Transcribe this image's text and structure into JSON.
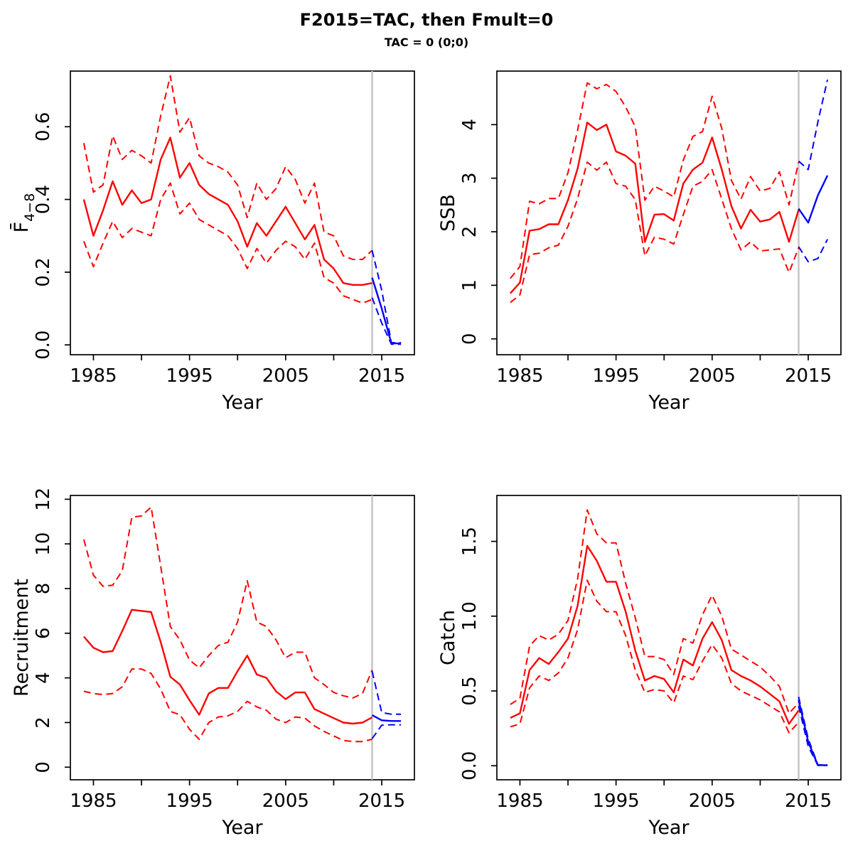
{
  "title": "F2015=TAC, then Fmult=0",
  "subtitle": "TAC = 0 (0;0)",
  "colors": {
    "historic": "#FF0000",
    "forecast": "#0000FF",
    "divider": "#C4C4C4",
    "axis": "#000000"
  },
  "chart_data": [
    {
      "id": "f48",
      "type": "line",
      "xlabel": "Year",
      "ylabel": "F̄",
      "ylabel_subscript": "4−8",
      "xlim": [
        1982.6,
        2018.4
      ],
      "ylim": [
        -0.027,
        0.753
      ],
      "xticks": [
        1985,
        1990,
        1995,
        2000,
        2005,
        2010,
        2015
      ],
      "xtick_labeled": [
        1985,
        1995,
        2005,
        2015
      ],
      "yticks": [
        0,
        0.2,
        0.4,
        0.6
      ],
      "ytick_labels": [
        "0.0",
        "0.2",
        "0.4",
        "0.6"
      ],
      "forecast_divider_x": 2014,
      "x": {
        "historic": [
          1984,
          1985,
          1986,
          1987,
          1988,
          1989,
          1990,
          1991,
          1992,
          1993,
          1994,
          1995,
          1996,
          1997,
          1998,
          1999,
          2000,
          2001,
          2002,
          2003,
          2004,
          2005,
          2006,
          2007,
          2008,
          2009,
          2010,
          2011,
          2012,
          2013,
          2014
        ],
        "forecast": [
          2014,
          2015,
          2016,
          2017
        ]
      },
      "series": [
        {
          "name": "median-historic",
          "color_key": "historic",
          "dash": false,
          "x_key": "historic",
          "values": [
            0.4,
            0.3,
            0.37,
            0.45,
            0.385,
            0.425,
            0.39,
            0.4,
            0.51,
            0.57,
            0.46,
            0.5,
            0.44,
            0.415,
            0.4,
            0.385,
            0.34,
            0.27,
            0.335,
            0.3,
            0.34,
            0.38,
            0.335,
            0.29,
            0.33,
            0.235,
            0.21,
            0.17,
            0.165,
            0.165,
            0.17
          ]
        },
        {
          "name": "upper-ci-historic",
          "color_key": "historic",
          "dash": true,
          "x_key": "historic",
          "values": [
            0.555,
            0.42,
            0.44,
            0.575,
            0.51,
            0.535,
            0.52,
            0.5,
            0.63,
            0.74,
            0.585,
            0.625,
            0.52,
            0.5,
            0.49,
            0.475,
            0.44,
            0.35,
            0.445,
            0.4,
            0.43,
            0.49,
            0.455,
            0.39,
            0.445,
            0.31,
            0.3,
            0.245,
            0.235,
            0.235,
            0.26
          ]
        },
        {
          "name": "lower-ci-historic",
          "color_key": "historic",
          "dash": true,
          "x_key": "historic",
          "values": [
            0.285,
            0.215,
            0.28,
            0.34,
            0.295,
            0.32,
            0.31,
            0.3,
            0.4,
            0.445,
            0.36,
            0.39,
            0.345,
            0.33,
            0.315,
            0.3,
            0.265,
            0.21,
            0.265,
            0.225,
            0.26,
            0.285,
            0.27,
            0.235,
            0.28,
            0.185,
            0.17,
            0.135,
            0.125,
            0.115,
            0.125
          ]
        },
        {
          "name": "median-forecast",
          "color_key": "forecast",
          "dash": false,
          "x_key": "forecast",
          "values": [
            0.185,
            0.1,
            0.004,
            0.004
          ]
        },
        {
          "name": "upper-ci-forecast",
          "color_key": "forecast",
          "dash": true,
          "x_key": "forecast",
          "values": [
            0.26,
            0.15,
            0.006,
            0.006
          ]
        },
        {
          "name": "lower-ci-forecast",
          "color_key": "forecast",
          "dash": true,
          "x_key": "forecast",
          "values": [
            0.13,
            0.06,
            0.002,
            0.002
          ]
        }
      ]
    },
    {
      "id": "ssb",
      "type": "line",
      "xlabel": "Year",
      "ylabel": "SSB",
      "ylabel_subscript": "",
      "xlim": [
        1982.6,
        2018.4
      ],
      "ylim": [
        -0.296,
        5.0
      ],
      "xticks": [
        1985,
        1990,
        1995,
        2000,
        2005,
        2010,
        2015
      ],
      "xtick_labeled": [
        1985,
        1995,
        2005,
        2015
      ],
      "yticks": [
        0,
        1,
        2,
        3,
        4
      ],
      "ytick_labels": [
        "0",
        "1",
        "2",
        "3",
        "4"
      ],
      "forecast_divider_x": 2014,
      "x": {
        "historic": [
          1984,
          1985,
          1986,
          1987,
          1988,
          1989,
          1990,
          1991,
          1992,
          1993,
          1994,
          1995,
          1996,
          1997,
          1998,
          1999,
          2000,
          2001,
          2002,
          2003,
          2004,
          2005,
          2006,
          2007,
          2008,
          2009,
          2010,
          2011,
          2012,
          2013,
          2014
        ],
        "forecast": [
          2014,
          2015,
          2016,
          2017
        ]
      },
      "series": [
        {
          "name": "median-historic",
          "color_key": "historic",
          "dash": false,
          "x_key": "historic",
          "values": [
            0.85,
            1.05,
            2.02,
            2.05,
            2.14,
            2.14,
            2.59,
            3.18,
            4.04,
            3.9,
            4.0,
            3.5,
            3.42,
            3.27,
            1.81,
            2.32,
            2.33,
            2.21,
            2.9,
            3.16,
            3.29,
            3.76,
            3.16,
            2.48,
            2.06,
            2.41,
            2.19,
            2.23,
            2.37,
            1.81,
            2.41
          ]
        },
        {
          "name": "upper-ci-historic",
          "color_key": "historic",
          "dash": true,
          "x_key": "historic",
          "values": [
            1.13,
            1.35,
            2.57,
            2.52,
            2.62,
            2.62,
            3.1,
            3.9,
            4.78,
            4.67,
            4.75,
            4.62,
            4.33,
            3.96,
            2.59,
            2.85,
            2.76,
            2.65,
            3.34,
            3.78,
            3.87,
            4.53,
            3.93,
            2.96,
            2.61,
            3.03,
            2.76,
            2.81,
            3.12,
            2.5,
            3.3
          ]
        },
        {
          "name": "lower-ci-historic",
          "color_key": "historic",
          "dash": true,
          "x_key": "historic",
          "values": [
            0.68,
            0.82,
            1.57,
            1.6,
            1.7,
            1.75,
            2.1,
            2.62,
            3.3,
            3.15,
            3.3,
            2.9,
            2.85,
            2.6,
            1.55,
            1.9,
            1.86,
            1.77,
            2.32,
            2.85,
            2.94,
            3.16,
            2.61,
            2.06,
            1.66,
            1.81,
            1.64,
            1.66,
            1.68,
            1.24,
            1.7
          ]
        },
        {
          "name": "median-forecast",
          "color_key": "forecast",
          "dash": false,
          "x_key": "forecast",
          "values": [
            2.43,
            2.17,
            2.68,
            3.05
          ]
        },
        {
          "name": "upper-ci-forecast",
          "color_key": "forecast",
          "dash": true,
          "x_key": "forecast",
          "values": [
            3.32,
            3.16,
            4.05,
            4.84
          ]
        },
        {
          "name": "lower-ci-forecast",
          "color_key": "forecast",
          "dash": true,
          "x_key": "forecast",
          "values": [
            1.72,
            1.44,
            1.5,
            1.86
          ]
        }
      ]
    },
    {
      "id": "recruitment",
      "type": "line",
      "xlabel": "Year",
      "ylabel": "Recruitment",
      "ylabel_subscript": "",
      "xlim": [
        1982.6,
        2018.4
      ],
      "ylim": [
        -0.564,
        12.17
      ],
      "xticks": [
        1985,
        1990,
        1995,
        2000,
        2005,
        2010,
        2015
      ],
      "xtick_labeled": [
        1985,
        1995,
        2005,
        2015
      ],
      "yticks": [
        0,
        2,
        4,
        6,
        8,
        10,
        12
      ],
      "ytick_labels": [
        "0",
        "2",
        "4",
        "6",
        "8",
        "10",
        "12"
      ],
      "forecast_divider_x": 2014,
      "x": {
        "historic": [
          1984,
          1985,
          1986,
          1987,
          1988,
          1989,
          1990,
          1991,
          1992,
          1993,
          1994,
          1995,
          1996,
          1997,
          1998,
          1999,
          2000,
          2001,
          2002,
          2003,
          2004,
          2005,
          2006,
          2007,
          2008,
          2009,
          2010,
          2011,
          2012,
          2013,
          2014
        ],
        "forecast": [
          2014,
          2015,
          2016,
          2017
        ]
      },
      "series": [
        {
          "name": "median-historic",
          "color_key": "historic",
          "dash": false,
          "x_key": "historic",
          "values": [
            5.85,
            5.35,
            5.15,
            5.2,
            6.1,
            7.05,
            7.0,
            6.95,
            5.6,
            4.05,
            3.7,
            3.0,
            2.35,
            3.3,
            3.55,
            3.55,
            4.3,
            5.0,
            4.15,
            4.0,
            3.4,
            3.05,
            3.35,
            3.35,
            2.6,
            2.4,
            2.2,
            2.0,
            1.95,
            2.0,
            2.23
          ]
        },
        {
          "name": "upper-ci-historic",
          "color_key": "historic",
          "dash": true,
          "x_key": "historic",
          "values": [
            10.2,
            8.6,
            8.1,
            8.15,
            8.8,
            11.2,
            11.25,
            11.65,
            9.0,
            6.3,
            5.7,
            4.8,
            4.45,
            5.0,
            5.45,
            5.6,
            6.5,
            8.35,
            6.5,
            6.3,
            5.7,
            4.9,
            5.15,
            5.15,
            4.0,
            3.7,
            3.35,
            3.2,
            3.1,
            3.3,
            4.35
          ]
        },
        {
          "name": "lower-ci-historic",
          "color_key": "historic",
          "dash": true,
          "x_key": "historic",
          "values": [
            3.4,
            3.3,
            3.25,
            3.3,
            3.6,
            4.4,
            4.4,
            4.2,
            3.5,
            2.5,
            2.35,
            1.7,
            1.25,
            2.0,
            2.25,
            2.3,
            2.5,
            2.95,
            2.7,
            2.55,
            2.15,
            2.0,
            2.25,
            2.2,
            1.85,
            1.6,
            1.4,
            1.2,
            1.15,
            1.15,
            1.25
          ]
        },
        {
          "name": "median-forecast",
          "color_key": "forecast",
          "dash": false,
          "x_key": "forecast",
          "values": [
            2.33,
            2.1,
            2.07,
            2.07
          ]
        },
        {
          "name": "upper-ci-forecast",
          "color_key": "forecast",
          "dash": true,
          "x_key": "forecast",
          "values": [
            4.3,
            2.45,
            2.37,
            2.37
          ]
        },
        {
          "name": "lower-ci-forecast",
          "color_key": "forecast",
          "dash": true,
          "x_key": "forecast",
          "values": [
            1.28,
            1.88,
            1.9,
            1.9
          ]
        }
      ]
    },
    {
      "id": "catch",
      "type": "line",
      "xlabel": "Year",
      "ylabel": "Catch",
      "ylabel_subscript": "",
      "xlim": [
        1982.6,
        2018.4
      ],
      "ylim": [
        -0.094,
        1.807
      ],
      "xticks": [
        1985,
        1990,
        1995,
        2000,
        2005,
        2010,
        2015
      ],
      "xtick_labeled": [
        1985,
        1995,
        2005,
        2015
      ],
      "yticks": [
        0,
        0.5,
        1.0,
        1.5
      ],
      "ytick_labels": [
        "0.0",
        "0.5",
        "1.0",
        "1.5"
      ],
      "forecast_divider_x": 2014,
      "x": {
        "historic": [
          1984,
          1985,
          1986,
          1987,
          1988,
          1989,
          1990,
          1991,
          1992,
          1993,
          1994,
          1995,
          1996,
          1997,
          1998,
          1999,
          2000,
          2001,
          2002,
          2003,
          2004,
          2005,
          2006,
          2007,
          2008,
          2009,
          2010,
          2011,
          2012,
          2013,
          2014
        ],
        "forecast": [
          2014,
          2015,
          2016,
          2017
        ]
      },
      "series": [
        {
          "name": "median-historic",
          "color_key": "historic",
          "dash": false,
          "x_key": "historic",
          "values": [
            0.32,
            0.35,
            0.64,
            0.72,
            0.68,
            0.76,
            0.85,
            1.07,
            1.47,
            1.37,
            1.23,
            1.23,
            1.03,
            0.77,
            0.57,
            0.6,
            0.58,
            0.49,
            0.71,
            0.67,
            0.85,
            0.96,
            0.84,
            0.64,
            0.6,
            0.57,
            0.53,
            0.48,
            0.43,
            0.28,
            0.37
          ]
        },
        {
          "name": "upper-ci-historic",
          "color_key": "historic",
          "dash": true,
          "x_key": "historic",
          "values": [
            0.41,
            0.45,
            0.8,
            0.87,
            0.84,
            0.88,
            0.97,
            1.25,
            1.71,
            1.55,
            1.49,
            1.49,
            1.22,
            0.99,
            0.73,
            0.73,
            0.71,
            0.61,
            0.85,
            0.82,
            1.01,
            1.14,
            1.0,
            0.78,
            0.74,
            0.7,
            0.66,
            0.6,
            0.53,
            0.35,
            0.42
          ]
        },
        {
          "name": "lower-ci-historic",
          "color_key": "historic",
          "dash": true,
          "x_key": "historic",
          "values": [
            0.26,
            0.28,
            0.52,
            0.6,
            0.57,
            0.62,
            0.72,
            0.91,
            1.24,
            1.1,
            1.03,
            1.03,
            0.87,
            0.64,
            0.49,
            0.51,
            0.5,
            0.42,
            0.6,
            0.575,
            0.7,
            0.81,
            0.72,
            0.55,
            0.5,
            0.47,
            0.44,
            0.4,
            0.36,
            0.22,
            0.29
          ]
        },
        {
          "name": "median-forecast",
          "color_key": "forecast",
          "dash": false,
          "x_key": "forecast",
          "values": [
            0.44,
            0.16,
            0.004,
            0.004
          ]
        },
        {
          "name": "upper-ci-forecast",
          "color_key": "forecast",
          "dash": true,
          "x_key": "forecast",
          "values": [
            0.46,
            0.18,
            0.006,
            0.006
          ]
        },
        {
          "name": "lower-ci-forecast",
          "color_key": "forecast",
          "dash": true,
          "x_key": "forecast",
          "values": [
            0.4,
            0.13,
            0.002,
            0.002
          ]
        }
      ]
    }
  ]
}
